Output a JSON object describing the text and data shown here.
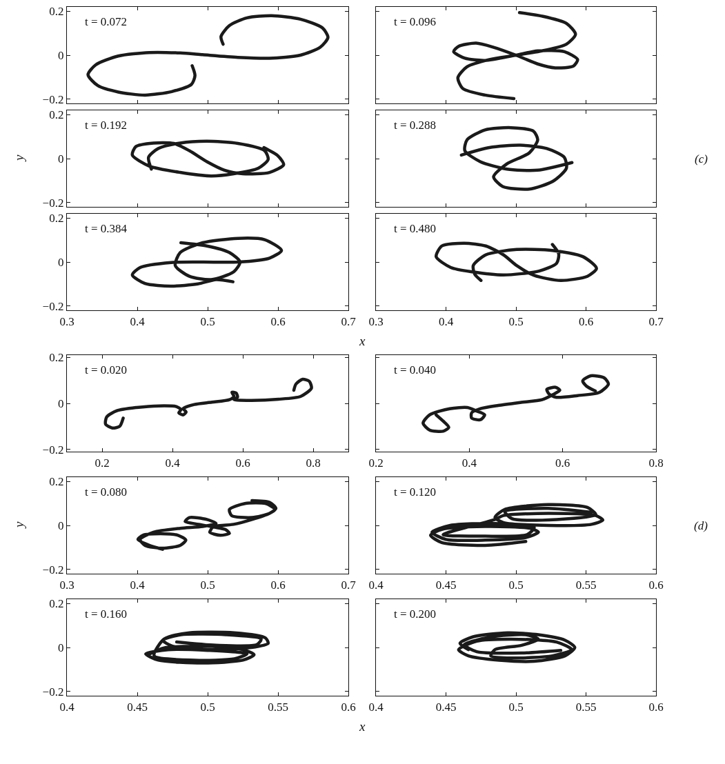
{
  "chart_data": [
    {
      "type": "line",
      "title": "t = 0.072",
      "color": "#1a1a1a",
      "xlim": [
        0.3,
        0.7
      ],
      "ylim": [
        -0.22,
        0.22
      ],
      "xticks": [
        0.3,
        0.4,
        0.5,
        0.6,
        0.7
      ],
      "yticks": [
        -0.2,
        0,
        0.2
      ],
      "tick_labels": "y",
      "x": [
        0.522,
        0.519,
        0.531,
        0.556,
        0.591,
        0.632,
        0.663,
        0.671,
        0.66,
        0.632,
        0.588,
        0.543,
        0.493,
        0.461,
        0.417,
        0.373,
        0.341,
        0.33,
        0.344,
        0.373,
        0.411,
        0.449,
        0.477,
        0.482,
        0.478
      ],
      "values": [
        0.05,
        0.085,
        0.135,
        0.17,
        0.18,
        0.164,
        0.125,
        0.081,
        0.036,
        0,
        -0.014,
        -0.01,
        0.002,
        0.01,
        0.012,
        -0.004,
        -0.044,
        -0.089,
        -0.139,
        -0.168,
        -0.182,
        -0.166,
        -0.133,
        -0.093,
        -0.048
      ]
    },
    {
      "type": "line",
      "title": "t = 0.096",
      "color": "#1a1a1a",
      "xlim": [
        0.3,
        0.7
      ],
      "ylim": [
        -0.22,
        0.22
      ],
      "xticks": [
        0.3,
        0.4,
        0.5,
        0.6,
        0.7
      ],
      "yticks": [
        -0.2,
        0,
        0.2
      ],
      "tick_labels": false,
      "x": [
        0.497,
        0.456,
        0.424,
        0.417,
        0.43,
        0.462,
        0.5,
        0.531,
        0.569,
        0.588,
        0.582,
        0.556,
        0.531,
        0.5,
        0.468,
        0.443,
        0.418,
        0.411,
        0.427,
        0.456,
        0.5,
        0.541,
        0.572,
        0.585,
        0.572,
        0.537,
        0.505
      ],
      "values": [
        -0.198,
        -0.182,
        -0.152,
        -0.103,
        -0.053,
        -0.02,
        0,
        0.02,
        0.016,
        -0.02,
        -0.05,
        -0.058,
        -0.04,
        0,
        0.036,
        0.055,
        0.04,
        0.016,
        -0.014,
        -0.024,
        0,
        0.022,
        0.05,
        0.095,
        0.145,
        0.178,
        0.194
      ]
    },
    {
      "type": "line",
      "title": "t = 0.192",
      "ylabel": "y",
      "color": "#1a1a1a",
      "xlim": [
        0.3,
        0.7
      ],
      "ylim": [
        -0.22,
        0.22
      ],
      "xticks": [
        0.3,
        0.4,
        0.5,
        0.6,
        0.7
      ],
      "yticks": [
        -0.2,
        0,
        0.2
      ],
      "tick_labels": "y",
      "x": [
        0.42,
        0.416,
        0.43,
        0.461,
        0.499,
        0.543,
        0.581,
        0.586,
        0.572,
        0.537,
        0.505,
        0.461,
        0.417,
        0.393,
        0.398,
        0.423,
        0.452,
        0.474,
        0.499,
        0.524,
        0.55,
        0.588,
        0.608,
        0.6,
        0.58
      ],
      "values": [
        -0.048,
        0.006,
        0.046,
        0.071,
        0.079,
        0.069,
        0.036,
        -0.004,
        -0.044,
        -0.069,
        -0.079,
        -0.063,
        -0.034,
        0.016,
        0.055,
        0.071,
        0.069,
        0.036,
        -0.014,
        -0.053,
        -0.069,
        -0.063,
        -0.028,
        0.012,
        0.05
      ]
    },
    {
      "type": "line",
      "title": "t = 0.288",
      "annotations": [
        "(c)"
      ],
      "color": "#1a1a1a",
      "xlim": [
        0.3,
        0.7
      ],
      "ylim": [
        -0.22,
        0.22
      ],
      "xticks": [
        0.3,
        0.4,
        0.5,
        0.6,
        0.7
      ],
      "yticks": [
        -0.2,
        0,
        0.2
      ],
      "tick_labels": false,
      "x": [
        0.422,
        0.462,
        0.506,
        0.544,
        0.569,
        0.572,
        0.553,
        0.519,
        0.481,
        0.468,
        0.487,
        0.519,
        0.531,
        0.525,
        0.493,
        0.456,
        0.43,
        0.427,
        0.449,
        0.487,
        0.531,
        0.58
      ],
      "values": [
        0.016,
        0.05,
        0.061,
        0.046,
        0.006,
        -0.044,
        -0.103,
        -0.139,
        -0.127,
        -0.083,
        -0.024,
        0.026,
        0.085,
        0.125,
        0.141,
        0.131,
        0.085,
        0.036,
        -0.014,
        -0.048,
        -0.053,
        -0.018
      ]
    },
    {
      "type": "line",
      "title": "t = 0.384",
      "xlabel": "x",
      "color": "#1a1a1a",
      "xlim": [
        0.3,
        0.7
      ],
      "ylim": [
        -0.22,
        0.22
      ],
      "xticks": [
        0.3,
        0.4,
        0.5,
        0.6,
        0.7
      ],
      "yticks": [
        -0.2,
        0,
        0.2
      ],
      "x": [
        0.462,
        0.499,
        0.531,
        0.546,
        0.537,
        0.505,
        0.474,
        0.454,
        0.461,
        0.493,
        0.543,
        0.581,
        0.605,
        0.588,
        0.543,
        0.493,
        0.448,
        0.404,
        0.393,
        0.411,
        0.448,
        0.486,
        0.512,
        0.536
      ],
      "values": [
        0.088,
        0.073,
        0.043,
        0,
        -0.045,
        -0.08,
        -0.065,
        -0.016,
        0.043,
        0.088,
        0.108,
        0.102,
        0.053,
        0.018,
        0,
        0,
        -0.002,
        -0.025,
        -0.059,
        -0.098,
        -0.11,
        -0.1,
        -0.08,
        -0.09
      ]
    },
    {
      "type": "line",
      "title": "t = 0.480",
      "color": "#1a1a1a",
      "xlim": [
        0.3,
        0.7
      ],
      "ylim": [
        -0.22,
        0.22
      ],
      "xticks": [
        0.3,
        0.4,
        0.5,
        0.6,
        0.7
      ],
      "yticks": [
        -0.2,
        0,
        0.2
      ],
      "tick_labels": "x",
      "x": [
        0.552,
        0.561,
        0.558,
        0.533,
        0.482,
        0.438,
        0.407,
        0.386,
        0.394,
        0.426,
        0.457,
        0.482,
        0.501,
        0.526,
        0.564,
        0.602,
        0.615,
        0.596,
        0.552,
        0.501,
        0.457,
        0.439,
        0.441,
        0.45
      ],
      "values": [
        0.08,
        0.037,
        -0.006,
        -0.041,
        -0.059,
        -0.045,
        -0.025,
        0.024,
        0.073,
        0.086,
        0.073,
        0.033,
        -0.016,
        -0.061,
        -0.084,
        -0.065,
        -0.029,
        0.024,
        0.053,
        0.057,
        0.033,
        -0.016,
        -0.055,
        -0.084
      ]
    },
    {
      "type": "line",
      "title": "t = 0.020",
      "color": "#1a1a1a",
      "xlim": [
        0.1,
        0.9
      ],
      "ylim": [
        -0.21,
        0.21
      ],
      "xticks": [
        0.2,
        0.4,
        0.6,
        0.8
      ],
      "yticks": [
        -0.2,
        0,
        0.2
      ],
      "x": [
        0.26,
        0.25,
        0.229,
        0.21,
        0.213,
        0.242,
        0.298,
        0.361,
        0.411,
        0.424,
        0.418,
        0.43,
        0.439,
        0.43,
        0.462,
        0.512,
        0.562,
        0.575,
        0.569,
        0.581,
        0.585,
        0.575,
        0.625,
        0.701,
        0.764,
        0.795,
        0.789,
        0.77,
        0.751,
        0.745
      ],
      "values": [
        -0.064,
        -0.1,
        -0.107,
        -0.091,
        -0.059,
        -0.032,
        -0.018,
        -0.011,
        -0.014,
        -0.027,
        -0.041,
        -0.05,
        -0.037,
        -0.023,
        -0.005,
        0.005,
        0.016,
        0.03,
        0.048,
        0.045,
        0.027,
        0.016,
        0.013,
        0.018,
        0.03,
        0.066,
        0.096,
        0.105,
        0.084,
        0.057
      ]
    },
    {
      "type": "line",
      "title": "t = 0.040",
      "color": "#1a1a1a",
      "xlim": [
        0.2,
        0.8
      ],
      "ylim": [
        -0.21,
        0.21
      ],
      "xticks": [
        0.2,
        0.4,
        0.6,
        0.8
      ],
      "yticks": [
        -0.2,
        0,
        0.2
      ],
      "tick_labels": "x",
      "x": [
        0.329,
        0.344,
        0.356,
        0.344,
        0.315,
        0.301,
        0.315,
        0.358,
        0.396,
        0.414,
        0.433,
        0.424,
        0.405,
        0.405,
        0.424,
        0.462,
        0.509,
        0.556,
        0.58,
        0.594,
        0.585,
        0.566,
        0.57,
        0.585,
        0.632,
        0.679,
        0.698,
        0.689,
        0.66,
        0.643,
        0.651,
        0.67
      ],
      "values": [
        -0.05,
        -0.077,
        -0.104,
        -0.121,
        -0.116,
        -0.086,
        -0.05,
        -0.023,
        -0.018,
        -0.032,
        -0.05,
        -0.071,
        -0.064,
        -0.041,
        -0.023,
        -0.009,
        0.004,
        0.016,
        0.039,
        0.057,
        0.07,
        0.061,
        0.043,
        0.027,
        0.034,
        0.048,
        0.084,
        0.111,
        0.12,
        0.098,
        0.075,
        0.054
      ]
    },
    {
      "type": "line",
      "title": "t = 0.080",
      "ylabel": "y",
      "color": "#1a1a1a",
      "xlim": [
        0.3,
        0.7
      ],
      "ylim": [
        -0.22,
        0.22
      ],
      "xticks": [
        0.3,
        0.4,
        0.5,
        0.6,
        0.7
      ],
      "yticks": [
        -0.2,
        0,
        0.2
      ],
      "x": [
        0.436,
        0.417,
        0.401,
        0.408,
        0.433,
        0.458,
        0.469,
        0.461,
        0.436,
        0.411,
        0.404,
        0.423,
        0.461,
        0.493,
        0.512,
        0.499,
        0.474,
        0.468,
        0.487,
        0.506,
        0.503,
        0.518,
        0.531,
        0.525,
        0.506,
        0.537,
        0.563,
        0.588,
        0.596,
        0.582,
        0.553,
        0.531,
        0.534,
        0.563,
        0.588,
        0.597,
        0.588,
        0.563
      ],
      "values": [
        -0.109,
        -0.091,
        -0.064,
        -0.045,
        -0.038,
        -0.045,
        -0.067,
        -0.091,
        -0.104,
        -0.091,
        -0.064,
        -0.031,
        -0.013,
        -0.005,
        0.009,
        0.027,
        0.036,
        0.018,
        0.005,
        -0.009,
        -0.031,
        -0.045,
        -0.036,
        -0.018,
        -0.005,
        0.005,
        0.027,
        0.055,
        0.073,
        0.1,
        0.1,
        0.073,
        0.045,
        0.036,
        0.055,
        0.078,
        0.105,
        0.113
      ]
    },
    {
      "type": "line",
      "title": "t = 0.120",
      "annotations": [
        "(d)"
      ],
      "color": "#1a1a1a",
      "xlim": [
        0.4,
        0.6
      ],
      "ylim": [
        -0.22,
        0.22
      ],
      "xticks": [
        0.4,
        0.45,
        0.5,
        0.55,
        0.6
      ],
      "yticks": [
        -0.2,
        0,
        0.2
      ],
      "tick_labels": "x",
      "x": [
        0.507,
        0.478,
        0.447,
        0.439,
        0.447,
        0.478,
        0.51,
        0.516,
        0.507,
        0.478,
        0.45,
        0.44,
        0.453,
        0.485,
        0.513,
        0.508,
        0.478,
        0.448,
        0.485,
        0.491,
        0.523,
        0.557,
        0.562,
        0.554,
        0.523,
        0.491,
        0.485,
        0.492,
        0.523,
        0.551,
        0.557,
        0.529,
        0.497,
        0.492,
        0.523,
        0.554
      ],
      "values": [
        -0.073,
        -0.091,
        -0.078,
        -0.045,
        -0.018,
        -0.005,
        -0.013,
        -0.031,
        -0.055,
        -0.067,
        -0.064,
        -0.031,
        0,
        0.009,
        -0.009,
        -0.042,
        -0.049,
        -0.042,
        0.027,
        0.045,
        0.055,
        0.045,
        0.024,
        0.005,
        0,
        0.013,
        0.036,
        0.073,
        0.095,
        0.082,
        0.049,
        0.027,
        0.031,
        0.064,
        0.078,
        0.06
      ]
    },
    {
      "type": "line",
      "title": "t = 0.160",
      "xlabel": "x",
      "color": "#1a1a1a",
      "xlim": [
        0.4,
        0.6
      ],
      "ylim": [
        -0.22,
        0.22
      ],
      "xticks": [
        0.4,
        0.45,
        0.5,
        0.55,
        0.6
      ],
      "yticks": [
        -0.2,
        0,
        0.2
      ],
      "x": [
        0.459,
        0.469,
        0.497,
        0.525,
        0.533,
        0.525,
        0.497,
        0.465,
        0.456,
        0.472,
        0.5,
        0.528,
        0.519,
        0.491,
        0.462,
        0.469,
        0.487,
        0.519,
        0.541,
        0.543,
        0.531,
        0.503,
        0.475,
        0.468,
        0.481,
        0.513,
        0.538,
        0.535,
        0.506,
        0.478
      ],
      "values": [
        -0.029,
        -0.002,
        0.006,
        -0.01,
        -0.033,
        -0.058,
        -0.071,
        -0.058,
        -0.029,
        -0.01,
        -0.013,
        -0.029,
        -0.052,
        -0.058,
        -0.038,
        0.038,
        0.067,
        0.067,
        0.044,
        0.019,
        0,
        -0.01,
        0.006,
        0.033,
        0.058,
        0.058,
        0.038,
        0.013,
        0.01,
        0.025
      ]
    },
    {
      "type": "line",
      "title": "t = 0.200",
      "color": "#1a1a1a",
      "xlim": [
        0.4,
        0.6
      ],
      "ylim": [
        -0.22,
        0.22
      ],
      "xticks": [
        0.4,
        0.45,
        0.5,
        0.55,
        0.6
      ],
      "yticks": [
        -0.2,
        0,
        0.2
      ],
      "tick_labels": "x",
      "x": [
        0.466,
        0.46,
        0.469,
        0.494,
        0.516,
        0.535,
        0.542,
        0.535,
        0.513,
        0.488,
        0.466,
        0.459,
        0.472,
        0.497,
        0.529,
        0.54,
        0.526,
        0.497,
        0.482,
        0.485,
        0.504,
        0.516,
        0.507,
        0.482,
        0.463,
        0.472,
        0.504,
        0.532
      ],
      "values": [
        -0.01,
        0.019,
        0.048,
        0.067,
        0.058,
        0.033,
        0,
        -0.038,
        -0.063,
        -0.058,
        -0.038,
        -0.01,
        0.029,
        0.038,
        0.025,
        -0.01,
        -0.038,
        -0.048,
        -0.038,
        -0.01,
        0.01,
        0.038,
        0.058,
        0.048,
        0.013,
        -0.019,
        -0.025,
        -0.013
      ]
    }
  ]
}
